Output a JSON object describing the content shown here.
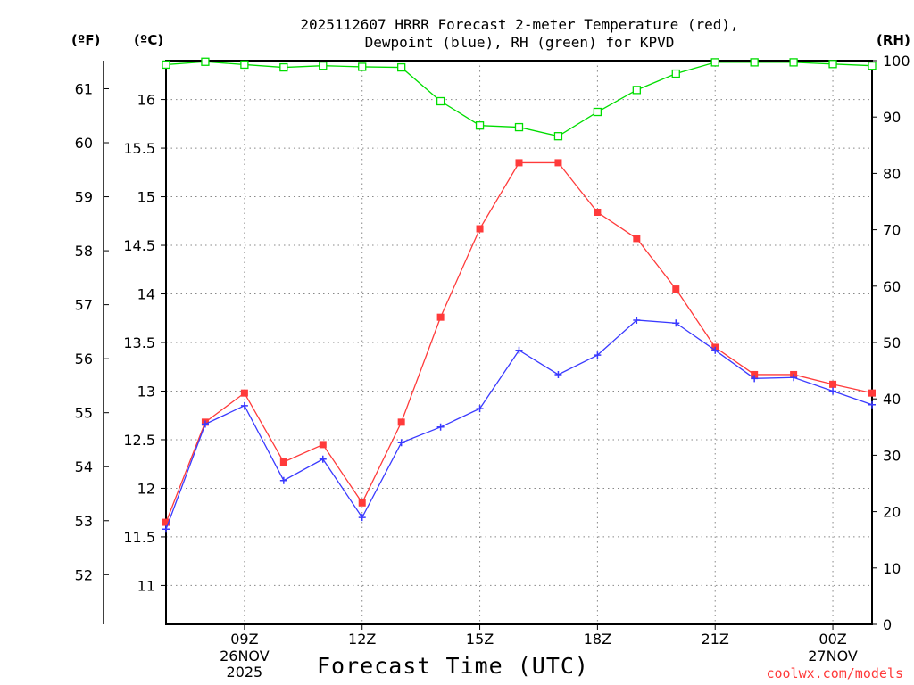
{
  "title_lines": [
    "2025112607 HRRR Forecast 2-meter Temperature (red),",
    "Dewpoint (blue), RH (green) for KPVD"
  ],
  "units": {
    "fahrenheit": "(ºF)",
    "celsius": "(ºC)",
    "rh": "(RH)"
  },
  "xlabel": "Forecast Time (UTC)",
  "credit": "coolwx.com/models",
  "colors": {
    "temperature": "#ff3a3a",
    "dewpoint": "#3a3aff",
    "rh": "#00dd00",
    "grid": "#888888"
  },
  "chart_data": {
    "type": "line",
    "title": "2025112607 HRRR Forecast 2-meter Temperature (red), Dewpoint (blue), RH (green) for KPVD",
    "xlabel": "Forecast Time (UTC)",
    "x": [
      "07Z",
      "08Z",
      "09Z",
      "10Z",
      "11Z",
      "12Z",
      "13Z",
      "14Z",
      "15Z",
      "16Z",
      "17Z",
      "18Z",
      "19Z",
      "20Z",
      "21Z",
      "22Z",
      "23Z",
      "00Z",
      "01Z"
    ],
    "xlim": [
      0,
      18
    ],
    "x_ticks": [
      {
        "index": 2,
        "label": "09Z",
        "sub": [
          "26NOV",
          "2025"
        ]
      },
      {
        "index": 5,
        "label": "12Z",
        "sub": []
      },
      {
        "index": 8,
        "label": "15Z",
        "sub": []
      },
      {
        "index": 11,
        "label": "18Z",
        "sub": []
      },
      {
        "index": 14,
        "label": "21Z",
        "sub": []
      },
      {
        "index": 17,
        "label": "00Z",
        "sub": [
          "27NOV"
        ]
      }
    ],
    "y_celsius": {
      "range": [
        10.6,
        16.4
      ],
      "ticks": [
        11,
        11.5,
        12,
        12.5,
        13,
        13.5,
        14,
        14.5,
        15,
        15.5,
        16
      ]
    },
    "y_fahrenheit": {
      "range": [
        51.08,
        61.52
      ],
      "ticks": [
        52,
        53,
        54,
        55,
        56,
        57,
        58,
        59,
        60,
        61
      ]
    },
    "y_rh": {
      "range": [
        0,
        100
      ],
      "ticks": [
        0,
        10,
        20,
        30,
        40,
        50,
        60,
        70,
        80,
        90,
        100
      ]
    },
    "series": [
      {
        "name": "Temperature",
        "axis": "celsius",
        "marker": "filled-square",
        "values": [
          11.65,
          12.68,
          12.98,
          12.27,
          12.45,
          11.85,
          12.68,
          13.76,
          14.67,
          15.35,
          15.35,
          14.84,
          14.57,
          14.05,
          13.45,
          13.17,
          13.17,
          13.07,
          12.98
        ]
      },
      {
        "name": "Dewpoint",
        "axis": "celsius",
        "marker": "plus",
        "values": [
          11.58,
          12.66,
          12.85,
          12.08,
          12.3,
          11.7,
          12.47,
          12.63,
          12.82,
          13.42,
          13.17,
          13.37,
          13.73,
          13.7,
          13.42,
          13.13,
          13.14,
          13.0,
          12.86
        ]
      },
      {
        "name": "RH",
        "axis": "rh",
        "marker": "open-square",
        "values": [
          99.3,
          99.8,
          99.3,
          98.8,
          99.1,
          98.9,
          98.8,
          92.8,
          88.5,
          88.2,
          86.6,
          90.9,
          94.8,
          97.7,
          99.7,
          99.7,
          99.7,
          99.4,
          99.1
        ]
      }
    ]
  }
}
